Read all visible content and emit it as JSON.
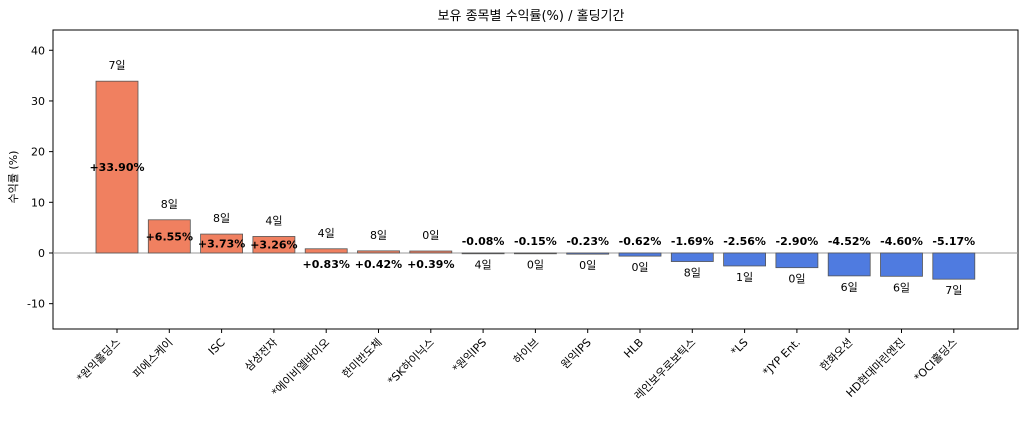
{
  "chart_data": {
    "type": "bar",
    "title": "보유 종목별 수익률(%) / 홀딩기간",
    "xlabel": "",
    "ylabel": "수익률 (%)",
    "ylim": [
      -15,
      44
    ],
    "yticks": [
      -10,
      0,
      10,
      20,
      30,
      40
    ],
    "grid": false,
    "legend": "none",
    "zero_line": true,
    "categories": [
      "*원익홀딩스",
      "피에스케이",
      "ISC",
      "삼성전자",
      "*에이비엘바이오",
      "한미반도체",
      "*SK하이닉스",
      "*원익IPS",
      "하이브",
      "원익IPS",
      "HLB",
      "레인보우로보틱스",
      "*LS",
      "*JYP Ent.",
      "한화오션",
      "HD현대마린엔진",
      "*OCI홀딩스"
    ],
    "values": [
      33.9,
      6.55,
      3.73,
      3.26,
      0.83,
      0.42,
      0.39,
      -0.08,
      -0.15,
      -0.23,
      -0.62,
      -1.69,
      -2.56,
      -2.9,
      -4.52,
      -4.6,
      -5.17
    ],
    "value_labels": [
      "+33.90%",
      "+6.55%",
      "+3.73%",
      "+3.26%",
      "+0.83%",
      "+0.42%",
      "+0.39%",
      "-0.08%",
      "-0.15%",
      "-0.23%",
      "-0.62%",
      "-1.69%",
      "-2.56%",
      "-2.90%",
      "-4.52%",
      "-4.60%",
      "-5.17%"
    ],
    "holding_labels": [
      "7일",
      "8일",
      "8일",
      "4일",
      "4일",
      "8일",
      "0일",
      "4일",
      "0일",
      "0일",
      "0일",
      "8일",
      "1일",
      "0일",
      "6일",
      "6일",
      "7일"
    ],
    "colors": {
      "positive": "#f08060",
      "negative": "#4f7be0",
      "edge": "#555555",
      "zero_line": "#999999"
    }
  }
}
